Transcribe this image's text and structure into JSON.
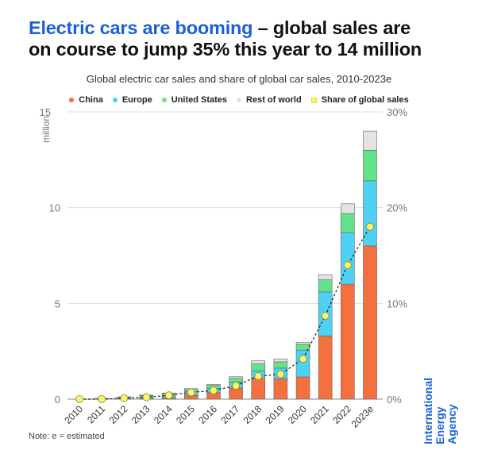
{
  "title_highlight": "Electric cars are booming",
  "title_rest_line1": " – global sales are",
  "title_line2": "on course to jump 35% this year to 14 million",
  "note": "Note: e = estimated",
  "logo_line1": "International",
  "logo_line2": "Energy Agency",
  "chart_data": {
    "type": "bar",
    "stacked": true,
    "title": "Global electric car sales and share of global car sales, 2010-2023e",
    "ylabel": "million",
    "ylim": [
      0,
      15
    ],
    "y_ticks": [
      "0",
      "5",
      "10",
      "15"
    ],
    "y2lim": [
      0,
      30
    ],
    "y2_ticks": [
      "0%",
      "10%",
      "20%",
      "30%"
    ],
    "grid": true,
    "legend_position": "top",
    "categories": [
      "2010",
      "2011",
      "2012",
      "2013",
      "2014",
      "2015",
      "2016",
      "2017",
      "2018",
      "2019",
      "2020",
      "2021",
      "2022",
      "2023e"
    ],
    "series": [
      {
        "name": "China",
        "color": "#f4703e",
        "values": [
          0.0,
          0.01,
          0.01,
          0.02,
          0.07,
          0.2,
          0.34,
          0.58,
          1.09,
          1.06,
          1.16,
          3.3,
          6.0,
          8.0
        ]
      },
      {
        "name": "Europe",
        "color": "#4fd0f5",
        "values": [
          0.0,
          0.01,
          0.05,
          0.07,
          0.1,
          0.19,
          0.22,
          0.31,
          0.39,
          0.56,
          1.4,
          2.3,
          2.7,
          3.4
        ]
      },
      {
        "name": "United States",
        "color": "#62e38a",
        "values": [
          0.0,
          0.02,
          0.05,
          0.1,
          0.12,
          0.11,
          0.16,
          0.2,
          0.36,
          0.33,
          0.3,
          0.63,
          0.99,
          1.6
        ]
      },
      {
        "name": "Rest of world",
        "color": "#e3e3e3",
        "values": [
          0.0,
          0.0,
          0.01,
          0.02,
          0.03,
          0.05,
          0.05,
          0.08,
          0.16,
          0.15,
          0.1,
          0.27,
          0.51,
          1.0
        ]
      }
    ],
    "line_series": {
      "name": "Share of global sales",
      "axis": "right",
      "color": "#fff36a",
      "values": [
        0.0,
        0.0,
        0.1,
        0.2,
        0.4,
        0.7,
        0.9,
        1.4,
        2.4,
        2.6,
        4.2,
        8.7,
        14,
        18
      ]
    }
  }
}
